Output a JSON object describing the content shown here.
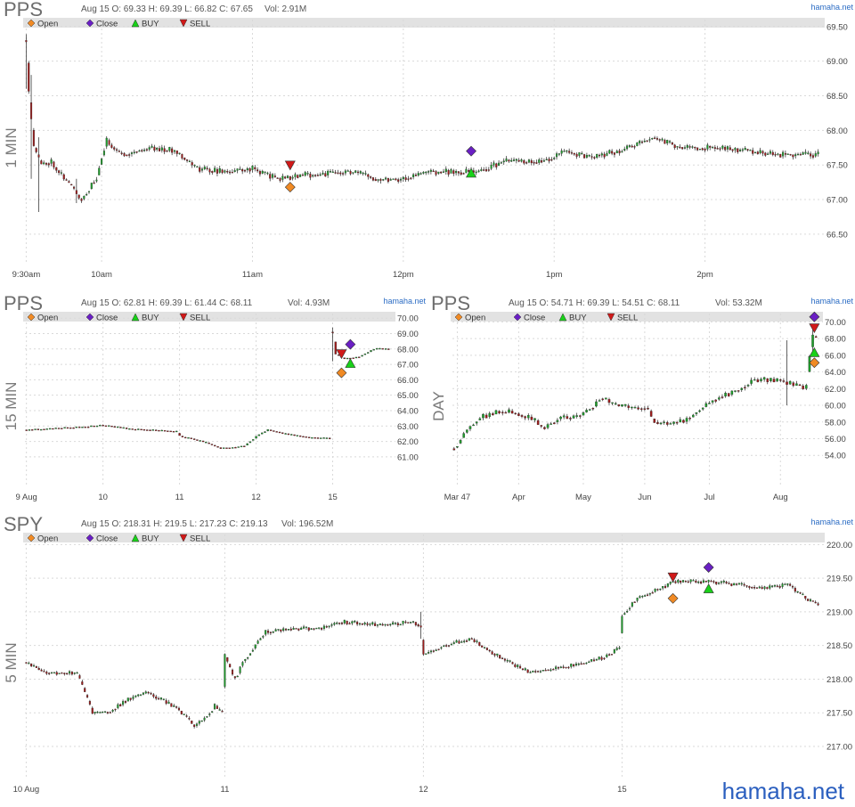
{
  "brand": "hamaha.net",
  "legend": {
    "open": "Open",
    "close": "Close",
    "buy": "BUY",
    "sell": "SELL"
  },
  "colors": {
    "up": "#1f9e2c",
    "down": "#9e1c1c",
    "open_marker": "#f08a24",
    "close_marker": "#6a1fc4",
    "buy_marker": "#19d119",
    "sell_marker": "#d11919"
  },
  "chart_data": [
    {
      "id": "pps-1min",
      "type": "candlestick",
      "ticker": "PPS",
      "period": "1 MIN",
      "info": "Aug 15 O: 69.33 H: 69.39 L: 66.82 C: 67.65",
      "volume": "Vol: 2.91M",
      "ylim": [
        66.1,
        69.6
      ],
      "yticks": [
        "66.50",
        "67.00",
        "67.50",
        "68.00",
        "68.50",
        "69.00",
        "69.50"
      ],
      "xticks": [
        "9:30am",
        "10am",
        "11am",
        "12pm",
        "1pm",
        "2pm"
      ],
      "xtick_pos": [
        0,
        30,
        90,
        150,
        210,
        270
      ],
      "n": 316,
      "anchors": [
        [
          0,
          69.3
        ],
        [
          1,
          68.6
        ],
        [
          3,
          67.8
        ],
        [
          6,
          67.5
        ],
        [
          10,
          67.55
        ],
        [
          20,
          67.1
        ],
        [
          22,
          67.0
        ],
        [
          28,
          67.3
        ],
        [
          32,
          67.85
        ],
        [
          38,
          67.65
        ],
        [
          50,
          67.75
        ],
        [
          60,
          67.7
        ],
        [
          68,
          67.45
        ],
        [
          80,
          67.4
        ],
        [
          90,
          67.45
        ],
        [
          100,
          67.3
        ],
        [
          110,
          67.35
        ],
        [
          130,
          67.4
        ],
        [
          140,
          67.3
        ],
        [
          150,
          67.3
        ],
        [
          160,
          67.4
        ],
        [
          180,
          67.4
        ],
        [
          190,
          67.55
        ],
        [
          205,
          67.55
        ],
        [
          215,
          67.7
        ],
        [
          225,
          67.6
        ],
        [
          240,
          67.75
        ],
        [
          250,
          67.9
        ],
        [
          260,
          67.75
        ],
        [
          275,
          67.75
        ],
        [
          290,
          67.7
        ],
        [
          300,
          67.65
        ],
        [
          315,
          67.65
        ]
      ],
      "spikes": [
        [
          0,
          68.6,
          69.39
        ],
        [
          2,
          67.3,
          68.8
        ],
        [
          5,
          66.82,
          67.9
        ],
        [
          20,
          66.95,
          67.3
        ]
      ],
      "markers": [
        {
          "kind": "open",
          "x": 105,
          "y": 67.18
        },
        {
          "kind": "sell",
          "x": 105,
          "y": 67.5
        },
        {
          "kind": "close",
          "x": 177,
          "y": 67.7
        },
        {
          "kind": "buy",
          "x": 177,
          "y": 67.38
        }
      ]
    },
    {
      "id": "pps-15min",
      "type": "candlestick",
      "ticker": "PPS",
      "period": "15 MIN",
      "info": "Aug 15 O: 62.81 H: 69.39 L: 61.44 C: 68.11",
      "volume": "Vol: 4.93M",
      "ylim": [
        59.2,
        70.3
      ],
      "yticks": [
        "61.00",
        "62.00",
        "63.00",
        "64.00",
        "65.00",
        "66.00",
        "67.00",
        "68.00",
        "69.00",
        "70.00"
      ],
      "xticks": [
        "9 Aug",
        "10",
        "11",
        "12",
        "15"
      ],
      "xtick_pos": [
        0,
        26,
        52,
        78,
        104
      ],
      "n": 124,
      "gaps": [
        [
          103,
          104
        ]
      ],
      "anchors": [
        [
          0,
          62.75
        ],
        [
          10,
          62.85
        ],
        [
          20,
          62.95
        ],
        [
          26,
          63.05
        ],
        [
          36,
          62.8
        ],
        [
          51,
          62.65
        ],
        [
          52,
          62.35
        ],
        [
          60,
          62.0
        ],
        [
          66,
          61.55
        ],
        [
          74,
          61.7
        ],
        [
          78,
          62.3
        ],
        [
          82,
          62.75
        ],
        [
          88,
          62.5
        ],
        [
          96,
          62.25
        ],
        [
          103,
          62.2
        ],
        [
          104,
          69.1
        ],
        [
          105,
          67.7
        ],
        [
          108,
          67.35
        ],
        [
          113,
          67.5
        ],
        [
          116,
          67.8
        ],
        [
          119,
          68.05
        ],
        [
          123,
          68.0
        ]
      ],
      "spikes": [
        [
          104,
          67.2,
          69.39
        ]
      ],
      "markers": [
        {
          "kind": "open",
          "x": 107,
          "y": 66.45
        },
        {
          "kind": "sell",
          "x": 107,
          "y": 67.7
        },
        {
          "kind": "close",
          "x": 110,
          "y": 68.3
        },
        {
          "kind": "buy",
          "x": 110,
          "y": 67.05
        }
      ]
    },
    {
      "id": "pps-day",
      "type": "candlestick",
      "ticker": "PPS",
      "period": "DAY",
      "info": "Aug 15 O: 54.71 H: 69.39 L: 54.51 C: 68.11",
      "volume": "Vol: 53.32M",
      "ylim": [
        50.5,
        71.0
      ],
      "yticks": [
        "54.00",
        "56.00",
        "58.00",
        "60.00",
        "62.00",
        "64.00",
        "66.00",
        "68.00",
        "70.00"
      ],
      "xticks": [
        "Mar 47",
        "Apr",
        "May",
        "Jun",
        "Jul",
        "Aug"
      ],
      "xtick_pos": [
        1,
        20,
        40,
        59,
        79,
        101
      ],
      "n": 113,
      "anchors": [
        [
          0,
          54.8
        ],
        [
          3,
          56.5
        ],
        [
          8,
          58.5
        ],
        [
          15,
          59.3
        ],
        [
          20,
          59.0
        ],
        [
          25,
          58.2
        ],
        [
          28,
          57.2
        ],
        [
          33,
          58.6
        ],
        [
          38,
          58.5
        ],
        [
          42,
          59.5
        ],
        [
          46,
          61.0
        ],
        [
          50,
          60.0
        ],
        [
          56,
          59.6
        ],
        [
          60,
          59.8
        ],
        [
          62,
          58.0
        ],
        [
          68,
          57.8
        ],
        [
          72,
          58.2
        ],
        [
          76,
          59.5
        ],
        [
          82,
          61.0
        ],
        [
          88,
          61.8
        ],
        [
          93,
          63.1
        ],
        [
          100,
          63.0
        ],
        [
          103,
          62.7
        ],
        [
          106,
          62.4
        ],
        [
          109,
          62.1
        ],
        [
          110,
          66.0
        ],
        [
          111,
          68.4
        ],
        [
          112,
          68.0
        ]
      ],
      "spikes": [
        [
          103,
          60.0,
          67.8
        ],
        [
          111,
          66.5,
          69.39
        ]
      ],
      "markers": [
        {
          "kind": "open",
          "x": 111.5,
          "y": 65.1
        },
        {
          "kind": "buy",
          "x": 111.5,
          "y": 66.3
        },
        {
          "kind": "sell",
          "x": 111.5,
          "y": 69.3
        },
        {
          "kind": "close",
          "x": 111.5,
          "y": 70.6
        }
      ]
    },
    {
      "id": "spy-5min",
      "type": "candlestick",
      "ticker": "SPY",
      "period": "5 MIN",
      "info": "Aug 15 O: 218.31 H: 219.5 L: 217.23 C: 219.13",
      "volume": "Vol: 196.52M",
      "ylim": [
        216.55,
        220.15
      ],
      "yticks": [
        "217.00",
        "217.50",
        "218.00",
        "218.50",
        "219.00",
        "219.50",
        "220.00"
      ],
      "xticks": [
        "10 Aug",
        "11",
        "12",
        "15"
      ],
      "xtick_pos": [
        0,
        78,
        156,
        234
      ],
      "n": 312,
      "anchors": [
        [
          0,
          218.25
        ],
        [
          8,
          218.1
        ],
        [
          20,
          218.1
        ],
        [
          22,
          217.9
        ],
        [
          26,
          217.5
        ],
        [
          32,
          217.5
        ],
        [
          40,
          217.7
        ],
        [
          48,
          217.8
        ],
        [
          60,
          217.55
        ],
        [
          66,
          217.3
        ],
        [
          70,
          217.4
        ],
        [
          74,
          217.6
        ],
        [
          77,
          217.5
        ],
        [
          78,
          218.35
        ],
        [
          82,
          218.0
        ],
        [
          86,
          218.3
        ],
        [
          94,
          218.7
        ],
        [
          104,
          218.75
        ],
        [
          116,
          218.75
        ],
        [
          124,
          218.85
        ],
        [
          140,
          218.8
        ],
        [
          152,
          218.85
        ],
        [
          155,
          218.8
        ],
        [
          156,
          218.35
        ],
        [
          164,
          218.5
        ],
        [
          175,
          218.6
        ],
        [
          183,
          218.4
        ],
        [
          192,
          218.2
        ],
        [
          198,
          218.1
        ],
        [
          206,
          218.15
        ],
        [
          214,
          218.2
        ],
        [
          225,
          218.3
        ],
        [
          233,
          218.45
        ],
        [
          234,
          218.95
        ],
        [
          240,
          219.2
        ],
        [
          255,
          219.45
        ],
        [
          270,
          219.45
        ],
        [
          280,
          219.4
        ],
        [
          290,
          219.35
        ],
        [
          300,
          219.4
        ],
        [
          306,
          219.2
        ],
        [
          311,
          219.1
        ]
      ],
      "spikes": [
        [
          155,
          218.6,
          219.0
        ]
      ],
      "markers": [
        {
          "kind": "open",
          "x": 254,
          "y": 219.2
        },
        {
          "kind": "sell",
          "x": 254,
          "y": 219.52
        },
        {
          "kind": "close",
          "x": 268,
          "y": 219.66
        },
        {
          "kind": "buy",
          "x": 268,
          "y": 219.34
        }
      ]
    }
  ]
}
